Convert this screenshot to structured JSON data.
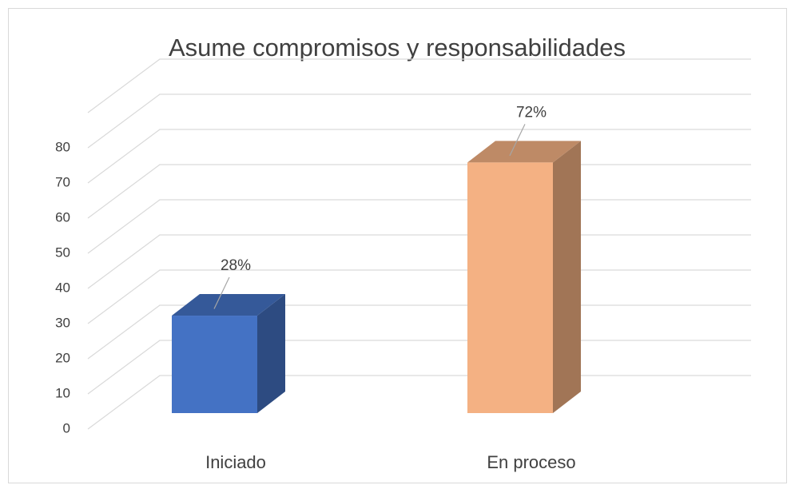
{
  "chart_data": {
    "type": "bar3d",
    "title": "Asume compromisos y responsabilidades",
    "categories": [
      "Iniciado",
      "En proceso"
    ],
    "series": [
      {
        "values": [
          28,
          72
        ],
        "value_labels": [
          "28%",
          "72%"
        ],
        "colors": [
          "#4472c4",
          "#f4b183"
        ]
      }
    ],
    "ylim": [
      0,
      90
    ],
    "yticks": [
      0,
      10,
      20,
      30,
      40,
      50,
      60,
      70,
      80
    ],
    "grid": true
  }
}
